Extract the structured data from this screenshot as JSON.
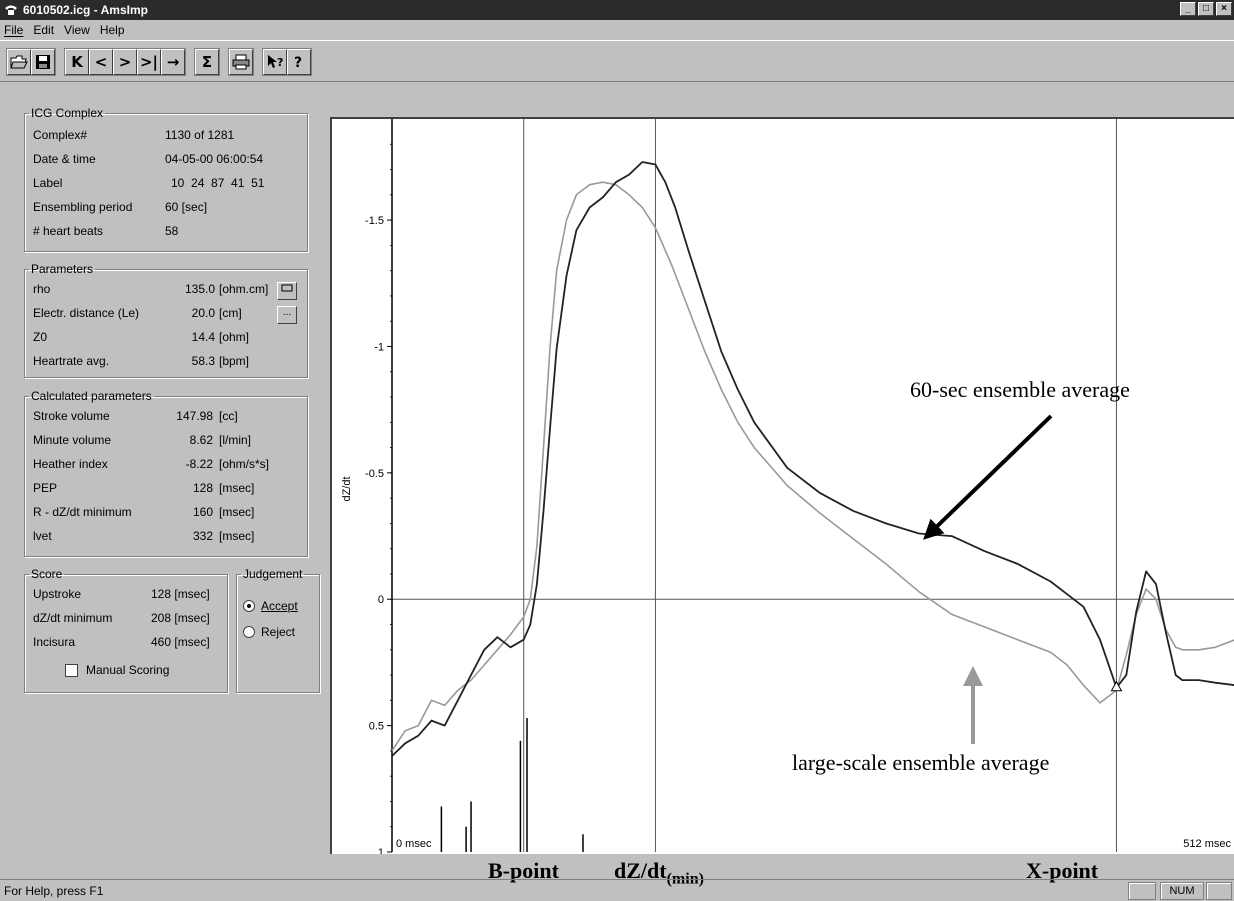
{
  "window": {
    "title": "6010502.icg - AmsImp"
  },
  "menu": {
    "file": "File",
    "edit": "Edit",
    "view": "View",
    "help": "Help"
  },
  "toolbar": {
    "open": "open-folder-icon",
    "save": "floppy-disk-icon",
    "first": "K",
    "prev": "<",
    "next": ">",
    "last": ">|",
    "goto": "→",
    "sum": "Σ",
    "print": "printer-icon",
    "context_help": "context-help-icon",
    "help": "help-icon"
  },
  "icg_complex": {
    "legend": "ICG Complex",
    "rows": [
      {
        "label": "Complex#",
        "value": "1130 of 1281"
      },
      {
        "label": "Date & time",
        "value": "04-05-00 06:00:54"
      },
      {
        "label": "Label",
        "value": "10  24  87  41  51"
      },
      {
        "label": "Ensembling period",
        "value": "60 [sec]"
      },
      {
        "label": "# heart beats",
        "value": "58"
      }
    ]
  },
  "parameters": {
    "legend": "Parameters",
    "rows": [
      {
        "label": "rho",
        "value": "135.0",
        "unit": "[ohm.cm]"
      },
      {
        "label": "Electr. distance (Le)",
        "value": "20.0",
        "unit": "[cm]"
      },
      {
        "label": "Z0",
        "value": "14.4",
        "unit": "[ohm]"
      },
      {
        "label": "Heartrate avg.",
        "value": "58.3",
        "unit": "[bpm]"
      }
    ],
    "rho_button": "",
    "le_button": "..."
  },
  "calculated": {
    "legend": "Calculated parameters",
    "rows": [
      {
        "label": "Stroke volume",
        "value": "147.98",
        "unit": "[cc]"
      },
      {
        "label": "Minute volume",
        "value": "8.62",
        "unit": "[l/min]"
      },
      {
        "label": "Heather index",
        "value": "-8.22",
        "unit": "[ohm/s*s]"
      },
      {
        "label": "PEP",
        "value": "128",
        "unit": "[msec]"
      },
      {
        "label": "R - dZ/dt minimum",
        "value": "160",
        "unit": "[msec]"
      },
      {
        "label": "lvet",
        "value": "332",
        "unit": "[msec]"
      }
    ]
  },
  "score": {
    "legend": "Score",
    "rows": [
      {
        "label": "Upstroke",
        "value": "128 [msec]"
      },
      {
        "label": "dZ/dt minimum",
        "value": "208 [msec]"
      },
      {
        "label": "Incisura",
        "value": "460 [msec]"
      }
    ],
    "manual_scoring": "Manual Scoring",
    "manual_scoring_checked": false
  },
  "judgement": {
    "legend": "Judgement",
    "accept": "Accept",
    "reject": "Reject",
    "selected": "accept"
  },
  "status": {
    "help_text": "For Help, press F1",
    "num": "NUM"
  },
  "chart_data": {
    "type": "line",
    "ylabel": "dZ/dt",
    "y_inverted": true,
    "ylim": [
      -1.9,
      1.0
    ],
    "xlim": [
      0,
      512
    ],
    "x_tick_labels": [
      "0 msec",
      "512 msec"
    ],
    "y_tick_labels": [
      "-1.5",
      "-1",
      "-0.5",
      "0",
      "0.5",
      "1"
    ],
    "y_ticks": [
      -1.5,
      -1,
      -0.5,
      0,
      0.5,
      1
    ],
    "grid": false,
    "vertical_lines": [
      80,
      160,
      440
    ],
    "horizontal_line": 0,
    "series": [
      {
        "name": "60-sec ensemble average",
        "color": "#222222",
        "x": [
          0,
          8,
          16,
          24,
          32,
          40,
          48,
          56,
          64,
          72,
          80,
          84,
          88,
          92,
          96,
          100,
          106,
          112,
          120,
          128,
          136,
          144,
          152,
          160,
          166,
          172,
          180,
          190,
          200,
          210,
          220,
          240,
          260,
          280,
          300,
          320,
          340,
          360,
          380,
          400,
          410,
          420,
          430,
          440,
          446,
          452,
          458,
          464,
          470,
          476,
          480,
          490,
          500,
          512
        ],
        "y": [
          0.62,
          0.57,
          0.54,
          0.48,
          0.5,
          0.4,
          0.3,
          0.2,
          0.15,
          0.19,
          0.16,
          0.1,
          -0.06,
          -0.35,
          -0.68,
          -0.99,
          -1.28,
          -1.46,
          -1.55,
          -1.59,
          -1.65,
          -1.68,
          -1.73,
          -1.72,
          -1.65,
          -1.55,
          -1.38,
          -1.18,
          -0.98,
          -0.83,
          -0.7,
          -0.52,
          -0.42,
          -0.35,
          -0.3,
          -0.26,
          -0.25,
          -0.19,
          -0.14,
          -0.07,
          -0.02,
          0.03,
          0.16,
          0.35,
          0.3,
          0.05,
          -0.11,
          -0.06,
          0.13,
          0.3,
          0.32,
          0.32,
          0.33,
          0.34
        ]
      },
      {
        "name": "large-scale ensemble average",
        "color": "#999999",
        "x": [
          0,
          8,
          16,
          24,
          32,
          40,
          48,
          56,
          64,
          72,
          80,
          84,
          88,
          92,
          96,
          100,
          106,
          112,
          120,
          128,
          136,
          144,
          152,
          160,
          170,
          180,
          190,
          200,
          210,
          220,
          240,
          260,
          280,
          300,
          320,
          340,
          360,
          380,
          400,
          410,
          420,
          430,
          440,
          446,
          452,
          458,
          464,
          470,
          476,
          480,
          490,
          500,
          512
        ],
        "y": [
          0.6,
          0.52,
          0.5,
          0.4,
          0.42,
          0.36,
          0.32,
          0.26,
          0.2,
          0.14,
          0.07,
          0.0,
          -0.21,
          -0.6,
          -1.0,
          -1.3,
          -1.5,
          -1.6,
          -1.64,
          -1.65,
          -1.64,
          -1.6,
          -1.55,
          -1.47,
          -1.32,
          -1.15,
          -0.98,
          -0.83,
          -0.7,
          -0.6,
          -0.45,
          -0.34,
          -0.24,
          -0.14,
          -0.03,
          0.06,
          0.11,
          0.16,
          0.21,
          0.26,
          0.34,
          0.41,
          0.36,
          0.22,
          0.06,
          -0.04,
          0.0,
          0.12,
          0.19,
          0.2,
          0.2,
          0.19,
          0.16
        ]
      }
    ],
    "event_markers": [
      {
        "x": 30,
        "value": 0.82
      },
      {
        "x": 45,
        "value": 0.9
      },
      {
        "x": 48,
        "value": 0.8
      },
      {
        "x": 78,
        "value": 0.56
      },
      {
        "x": 82,
        "value": 0.47
      },
      {
        "x": 116,
        "value": 0.93
      }
    ],
    "annotations": [
      {
        "text": "60-sec ensemble average"
      },
      {
        "text": "large-scale ensemble average"
      },
      {
        "text": "B-point"
      },
      {
        "text": "dZ/dt(min)"
      },
      {
        "text": "X-point"
      }
    ]
  }
}
